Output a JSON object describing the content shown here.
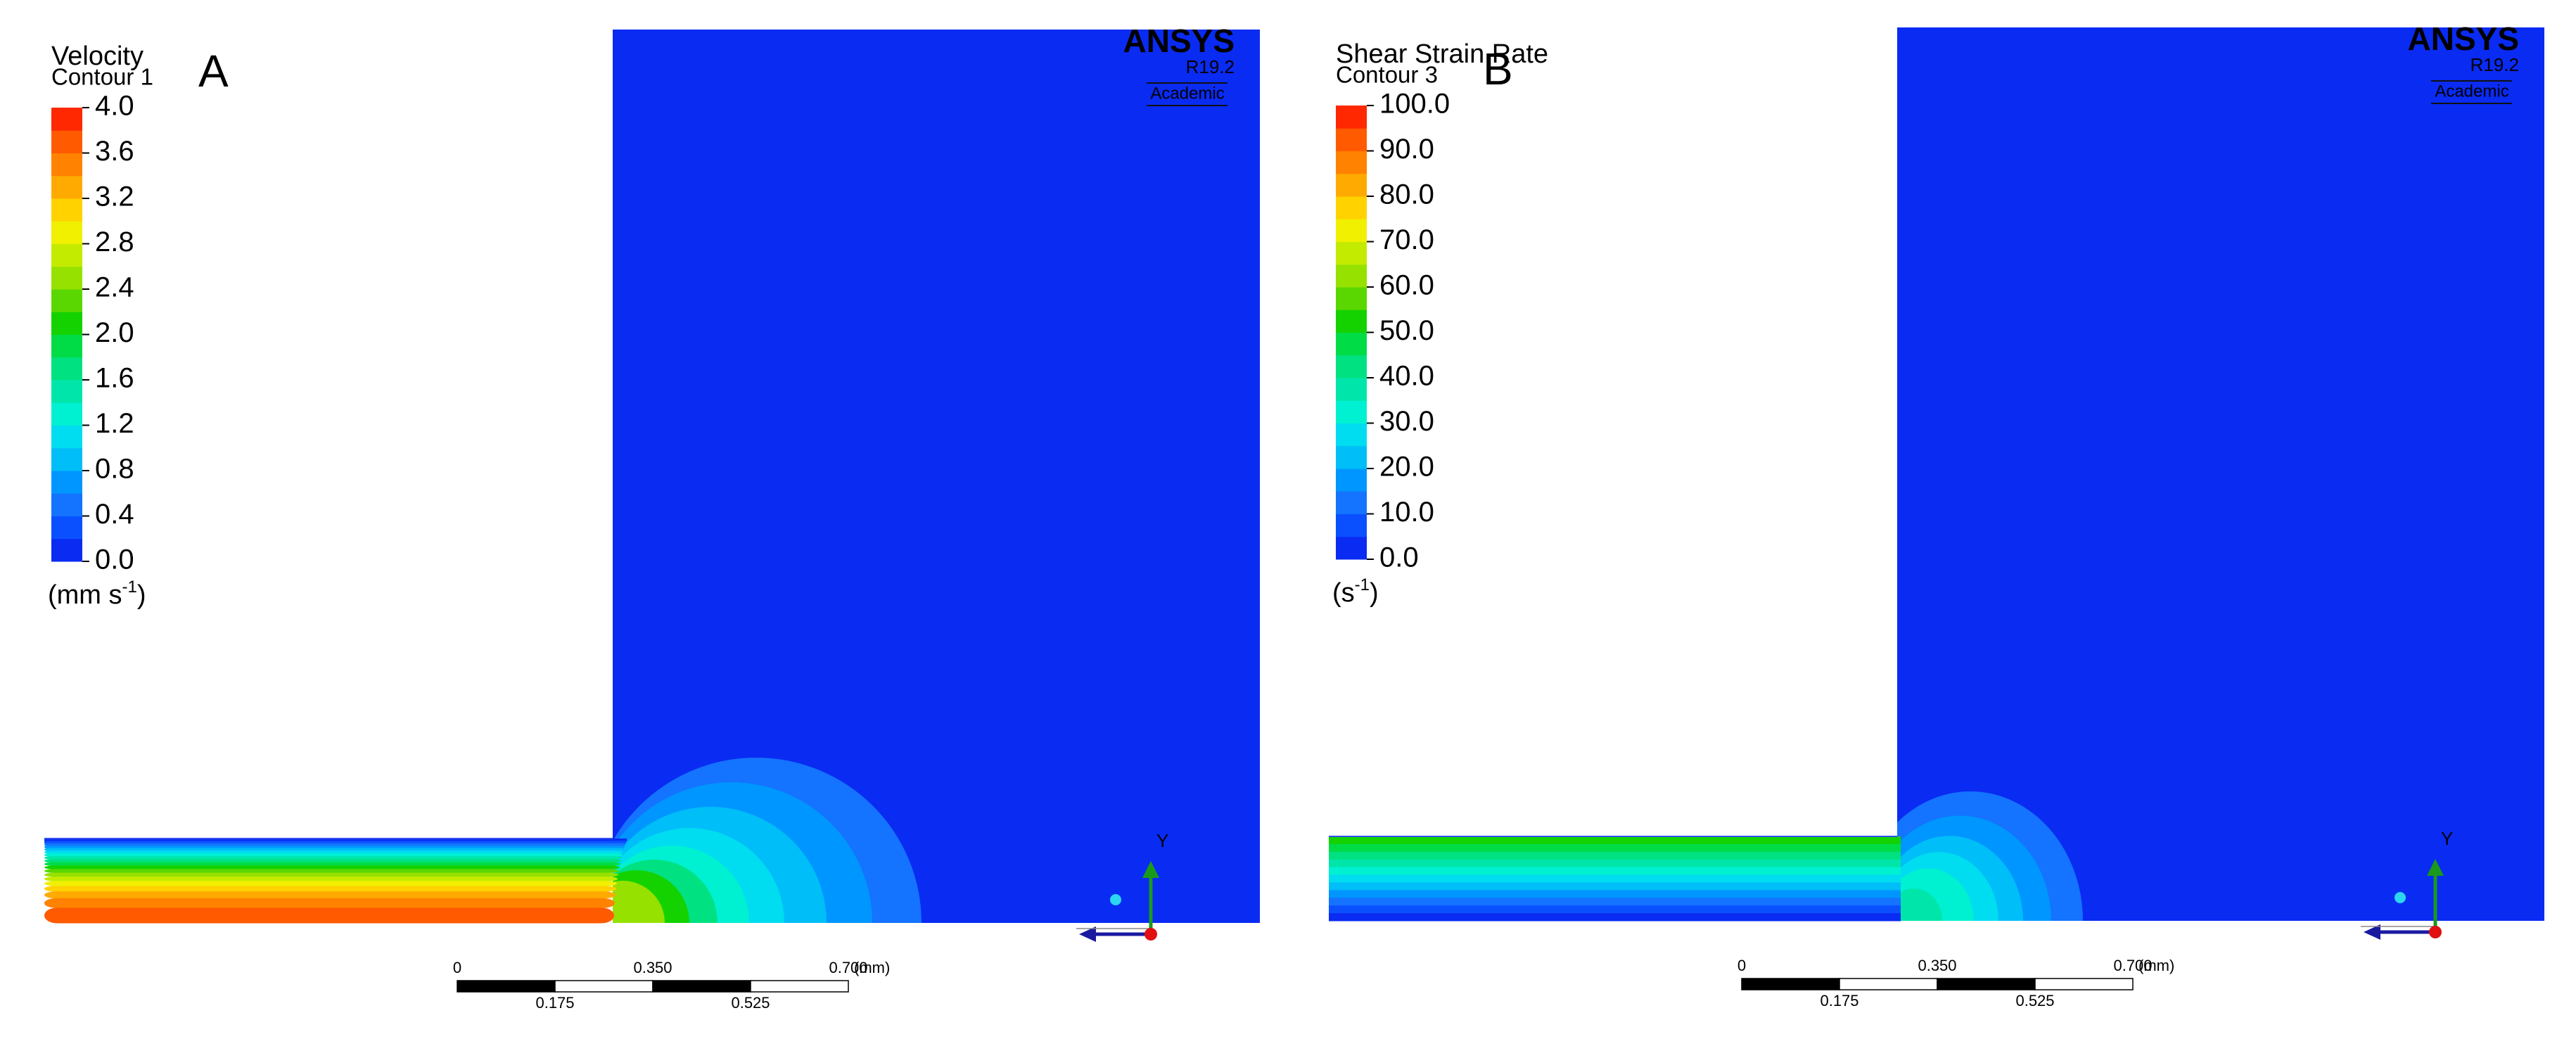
{
  "panels": [
    {
      "label": "A",
      "title": "Velocity",
      "subtitle": "Contour 1",
      "legend_ticks": [
        "4.0",
        "3.6",
        "3.2",
        "2.8",
        "2.4",
        "2.0",
        "1.6",
        "1.2",
        "0.8",
        "0.4",
        "0.0"
      ],
      "unit": [
        "(mm s",
        "-1",
        ")"
      ],
      "watermark": {
        "brand": "ANSYS",
        "version": "R19.2",
        "license": "Academic"
      },
      "scale_bar": {
        "top": [
          "0",
          "0.350",
          "0.700"
        ],
        "unit": "(mm)",
        "bottom": [
          "0.175",
          "0.525"
        ]
      },
      "axis": "Y"
    },
    {
      "label": "B",
      "title": "Shear Strain Rate",
      "subtitle": "Contour 3",
      "legend_ticks": [
        "100.0",
        "90.0",
        "80.0",
        "70.0",
        "60.0",
        "50.0",
        "40.0",
        "30.0",
        "20.0",
        "10.0",
        "0.0"
      ],
      "unit": [
        "(s",
        "-1",
        ")"
      ],
      "watermark": {
        "brand": "ANSYS",
        "version": "R19.2",
        "license": "Academic"
      },
      "scale_bar": {
        "top": [
          "0",
          "0.350",
          "0.700"
        ],
        "unit": "(mm)",
        "bottom": [
          "0.175",
          "0.525"
        ]
      },
      "axis": "Y"
    }
  ],
  "colormap": [
    "#0a2bf2",
    "#0a50ff",
    "#1473ff",
    "#0096ff",
    "#00bef8",
    "#00dcf0",
    "#00f0d2",
    "#00e6aa",
    "#00e182",
    "#00dc46",
    "#14d200",
    "#5ad700",
    "#96e100",
    "#c3eb00",
    "#f0f000",
    "#ffd200",
    "#ffaa00",
    "#ff8200",
    "#ff5a00",
    "#ff2800"
  ]
}
